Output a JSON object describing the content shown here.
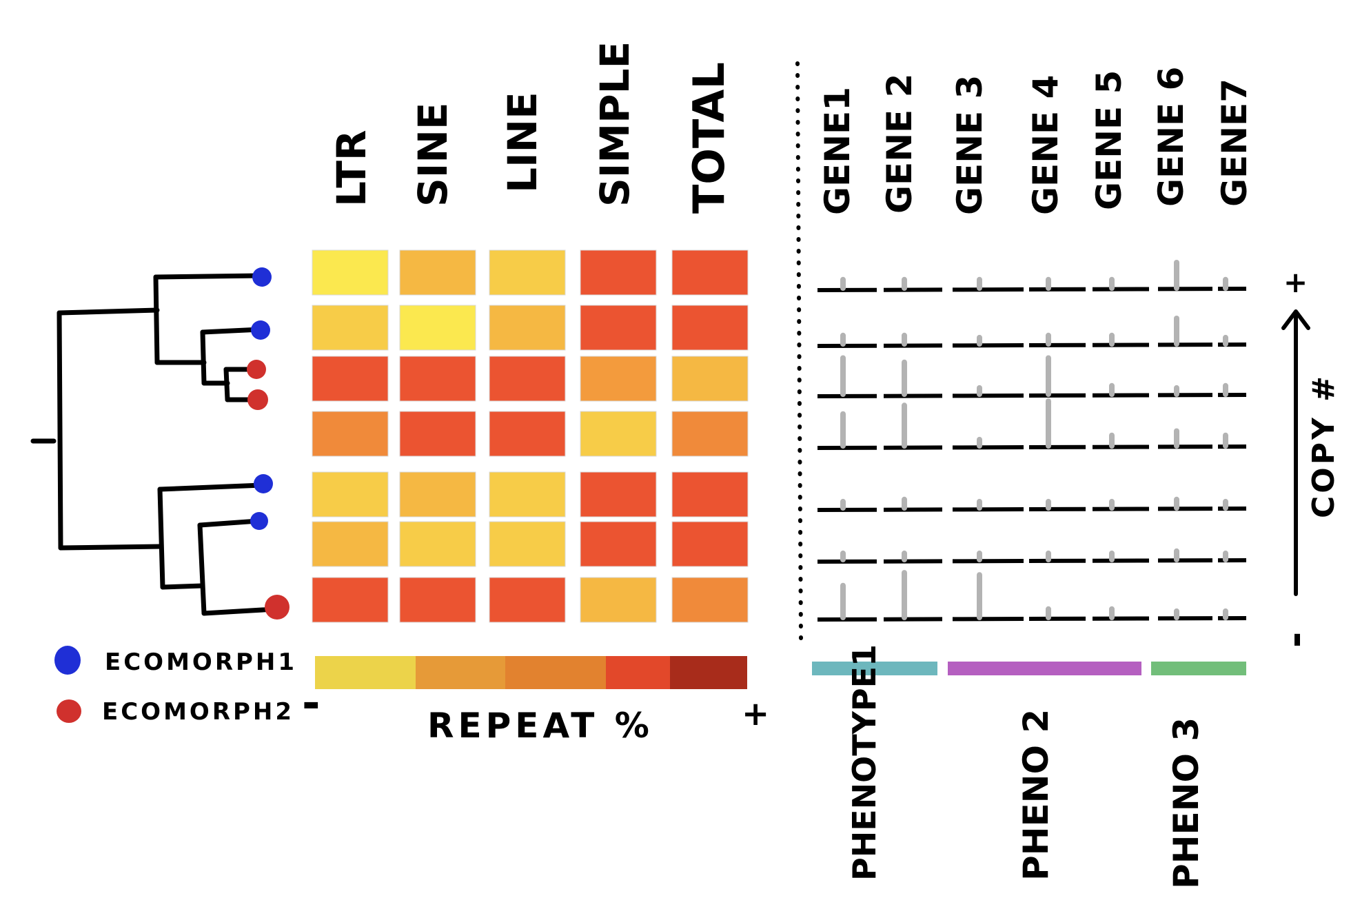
{
  "columns": {
    "repeat_types": [
      "LTR",
      "SINE",
      "LINE",
      "SIMPLE",
      "TOTAL"
    ],
    "genes": [
      "GENE1",
      "GENE 2",
      "GENE 3",
      "GENE 4",
      "GENE 5",
      "GENE 6",
      "GENE7"
    ]
  },
  "legend": {
    "ecomorph1": "ECOMORPH1",
    "ecomorph2": "ECOMORPH2",
    "ecomorph1_color": "#1f2fd6",
    "ecomorph2_color": "#d0312d"
  },
  "tips": [
    "ecomorph1",
    "ecomorph1",
    "ecomorph2",
    "ecomorph2",
    "ecomorph1",
    "ecomorph1",
    "ecomorph2"
  ],
  "heatmap": {
    "levels": [
      [
        1,
        3,
        2,
        6,
        6
      ],
      [
        2,
        1,
        3,
        6,
        6
      ],
      [
        6,
        6,
        6,
        4,
        3
      ],
      [
        5,
        6,
        6,
        2,
        5
      ],
      [
        2,
        3,
        2,
        6,
        6
      ],
      [
        3,
        2,
        2,
        6,
        6
      ],
      [
        6,
        6,
        6,
        3,
        5
      ]
    ],
    "palette": [
      "#fbe84f",
      "#f7cc48",
      "#f5b843",
      "#f39b3d",
      "#f08a3a",
      "#eb5431"
    ]
  },
  "scale": {
    "title": "REPEAT %",
    "min_label": "-",
    "max_label": "+",
    "colors": [
      "#ecd34a",
      "#e69a38",
      "#e2822f",
      "#e2482a",
      "#a82c1b"
    ]
  },
  "copy_number": {
    "values": [
      [
        0.1,
        0.1,
        0.1,
        0.1,
        0.1,
        0.5,
        0.1
      ],
      [
        0.1,
        0.1,
        0.05,
        0.1,
        0.1,
        0.5,
        0.05
      ],
      [
        0.75,
        0.65,
        0.05,
        0.75,
        0.1,
        0.05,
        0.1
      ],
      [
        0.65,
        0.85,
        0.05,
        0.95,
        0.15,
        0.25,
        0.15
      ],
      [
        0.05,
        0.1,
        0.05,
        0.05,
        0.05,
        0.1,
        0.05
      ],
      [
        0.05,
        0.05,
        0.05,
        0.05,
        0.05,
        0.1,
        0.05
      ],
      [
        0.65,
        0.95,
        0.9,
        0.1,
        0.1,
        0.05,
        0.05
      ]
    ]
  },
  "axis": {
    "label": "COPY #",
    "plus": "+",
    "minus": "-"
  },
  "phenotypes": [
    {
      "label": "PHENOTYPE1",
      "color": "#6db7bd",
      "genes": 2
    },
    {
      "label": "PHENO 2",
      "color": "#b55fc0",
      "genes": 3
    },
    {
      "label": "PHENO 3",
      "color": "#72be7a",
      "genes": 2
    }
  ],
  "tree": {
    "root_tick": "-"
  }
}
